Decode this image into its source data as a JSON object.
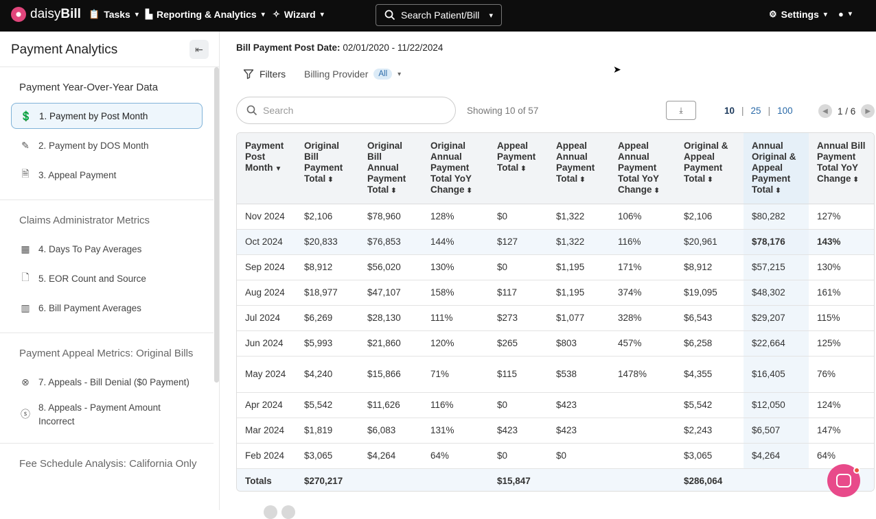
{
  "nav": {
    "logo_text_a": "daisy",
    "logo_text_b": "Bill",
    "tasks": "Tasks",
    "reporting": "Reporting & Analytics",
    "wizard": "Wizard",
    "search": "Search Patient/Bill",
    "settings": "Settings"
  },
  "sidebar": {
    "title": "Payment Analytics",
    "sections": [
      {
        "title": "Payment Year-Over-Year Data",
        "items": [
          {
            "label": "1. Payment by Post Month"
          },
          {
            "label": "2. Payment by DOS Month"
          },
          {
            "label": "3. Appeal Payment"
          }
        ]
      },
      {
        "title": "Claims Administrator Metrics",
        "items": [
          {
            "label": "4. Days To Pay Averages"
          },
          {
            "label": "5. EOR Count and Source"
          },
          {
            "label": "6. Bill Payment Averages"
          }
        ]
      },
      {
        "title": "Payment Appeal Metrics: Original Bills",
        "items": [
          {
            "label": "7. Appeals - Bill Denial ($0 Payment)"
          },
          {
            "label": "8. Appeals - Payment Amount Incorrect"
          }
        ]
      },
      {
        "title": "Fee Schedule Analysis: California Only",
        "items": []
      }
    ]
  },
  "main": {
    "post_date_label": "Bill Payment Post Date:",
    "post_date_value": "02/01/2020 - 11/22/2024",
    "filters_label": "Filters",
    "billing_provider_label": "Billing Provider",
    "billing_provider_value": "All",
    "search_placeholder": "Search",
    "showing": "Showing 10 of 57",
    "page_sizes": [
      "10",
      "25",
      "100"
    ],
    "page_indicator": "1 / 6"
  },
  "table": {
    "headers": [
      "Payment Post Month",
      "Original Bill Payment Total",
      "Original Bill Annual Payment Total",
      "Original Annual Payment Total YoY Change",
      "Appeal Payment Total",
      "Appeal Annual Payment Total",
      "Appeal Annual Payment Total YoY Change",
      "Original & Appeal Payment Total",
      "Annual Original & Appeal Payment Total",
      "Annual Bill Payment Total YoY Change"
    ],
    "rows": [
      [
        "Nov 2024",
        "$2,106",
        "$78,960",
        "128%",
        "$0",
        "$1,322",
        "106%",
        "$2,106",
        "$80,282",
        "127%"
      ],
      [
        "Oct 2024",
        "$20,833",
        "$76,853",
        "144%",
        "$127",
        "$1,322",
        "116%",
        "$20,961",
        "$78,176",
        "143%"
      ],
      [
        "Sep 2024",
        "$8,912",
        "$56,020",
        "130%",
        "$0",
        "$1,195",
        "171%",
        "$8,912",
        "$57,215",
        "130%"
      ],
      [
        "Aug 2024",
        "$18,977",
        "$47,107",
        "158%",
        "$117",
        "$1,195",
        "374%",
        "$19,095",
        "$48,302",
        "161%"
      ],
      [
        "Jul 2024",
        "$6,269",
        "$28,130",
        "111%",
        "$273",
        "$1,077",
        "328%",
        "$6,543",
        "$29,207",
        "115%"
      ],
      [
        "Jun 2024",
        "$5,993",
        "$21,860",
        "120%",
        "$265",
        "$803",
        "457%",
        "$6,258",
        "$22,664",
        "125%"
      ],
      [
        "May 2024",
        "$4,240",
        "$15,866",
        "71%",
        "$115",
        "$538",
        "1478%",
        "$4,355",
        "$16,405",
        "76%"
      ],
      [
        "Apr 2024",
        "$5,542",
        "$11,626",
        "116%",
        "$0",
        "$423",
        "",
        "$5,542",
        "$12,050",
        "124%"
      ],
      [
        "Mar 2024",
        "$1,819",
        "$6,083",
        "131%",
        "$423",
        "$423",
        "",
        "$2,243",
        "$6,507",
        "147%"
      ],
      [
        "Feb 2024",
        "$3,065",
        "$4,264",
        "64%",
        "$0",
        "$0",
        "",
        "$3,065",
        "$4,264",
        "64%"
      ]
    ],
    "totals": [
      "Totals",
      "$270,217",
      "",
      "",
      "$15,847",
      "",
      "",
      "$286,064",
      "",
      ""
    ]
  }
}
